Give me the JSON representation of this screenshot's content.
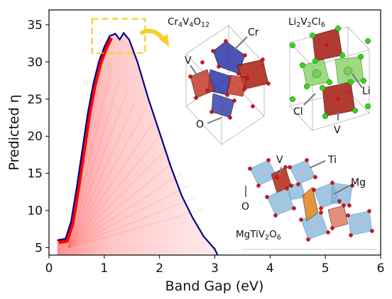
{
  "chart_data": {
    "type": "area",
    "xlabel": "Band Gap (eV)",
    "ylabel": "Predicted η",
    "xlim": [
      0,
      6
    ],
    "ylim": [
      4,
      37
    ],
    "x_ticks": [
      "0",
      "1",
      "2",
      "3",
      "4",
      "5",
      "6"
    ],
    "y_ticks": [
      "5",
      "10",
      "15",
      "20",
      "25",
      "30",
      "35"
    ],
    "x_tick_values": [
      0,
      1,
      2,
      3,
      4,
      5,
      6
    ],
    "y_tick_values": [
      5,
      10,
      15,
      20,
      25,
      30,
      35
    ],
    "series": [
      {
        "values": [
          [
            0.15,
            6.0
          ],
          [
            0.3,
            6.2
          ],
          [
            0.4,
            8.5
          ],
          [
            0.5,
            13
          ],
          [
            0.6,
            18
          ],
          [
            0.7,
            23
          ],
          [
            0.8,
            27
          ],
          [
            0.9,
            30
          ],
          [
            1.0,
            32
          ],
          [
            1.1,
            33.5
          ],
          [
            1.2,
            33.8
          ],
          [
            1.28,
            33.0
          ],
          [
            1.35,
            33.9
          ],
          [
            1.45,
            33.0
          ],
          [
            1.6,
            30
          ],
          [
            1.8,
            25
          ],
          [
            2.0,
            20.5
          ],
          [
            2.2,
            16
          ],
          [
            2.4,
            12
          ],
          [
            2.6,
            9.0
          ],
          [
            2.8,
            6.5
          ],
          [
            3.0,
            4.8
          ],
          [
            3.05,
            4.0
          ]
        ]
      }
    ],
    "highlight_box": {
      "x_range": [
        0.78,
        1.74
      ],
      "y_range": [
        31.2,
        35.8
      ]
    },
    "grid": false,
    "colors": {
      "edge": "#00008b",
      "fill": "#ff0000",
      "highlight": "#f7cd2b"
    }
  },
  "insets": {
    "cr4v4o12": {
      "title_parts": {
        "a": "Cr",
        "b": "4",
        "c": "V",
        "d": "4",
        "e": "O",
        "f": "12"
      },
      "labels": {
        "cr": "Cr",
        "v": "V",
        "o": "O"
      }
    },
    "li2v2cl6": {
      "title_parts": {
        "a": "Li",
        "b": "2",
        "c": "V",
        "d": "2",
        "e": "Cl",
        "f": "6"
      },
      "labels": {
        "li": "Li",
        "cl": "Cl",
        "v": "V"
      }
    },
    "mgtiv2o6": {
      "title_parts": {
        "a": "MgTiV",
        "b": "2",
        "c": "O",
        "d": "6"
      },
      "labels": {
        "v": "V",
        "ti": "Ti",
        "mg": "Mg",
        "o": "O"
      }
    }
  },
  "colors": {
    "cr_octahedra": "#2d35a8",
    "v_octahedra": "#c63a2a",
    "li_green": "#7ccf5a",
    "cl_green": "#3ad11f",
    "mg_orange": "#e18a2a",
    "ti_blue": "#7fb3d8",
    "oxygen_red": "#d1151a"
  }
}
